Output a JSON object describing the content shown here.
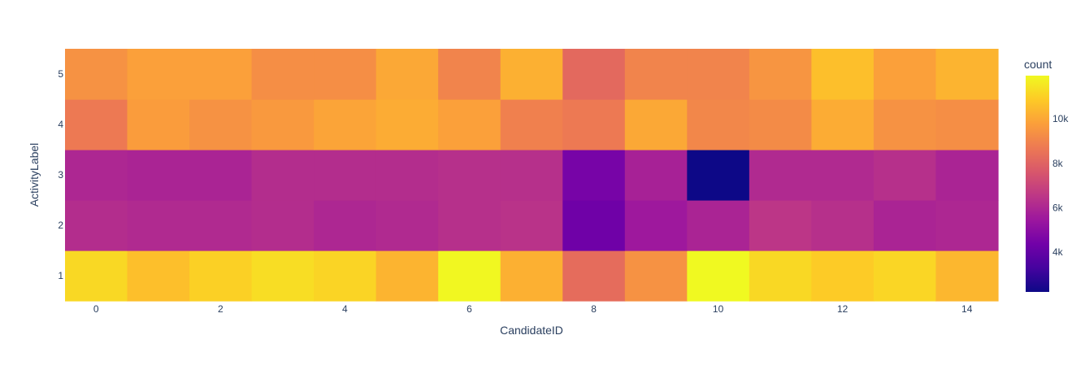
{
  "chart_data": {
    "type": "heatmap",
    "xlabel": "CandidateID",
    "ylabel": "ActivityLabel",
    "x": [
      0,
      1,
      2,
      3,
      4,
      5,
      6,
      7,
      8,
      9,
      10,
      11,
      12,
      13,
      14
    ],
    "y": [
      1,
      2,
      3,
      4,
      5
    ],
    "x_tick_labels": [
      "0",
      "2",
      "4",
      "6",
      "8",
      "10",
      "12",
      "14"
    ],
    "y_tick_labels": [
      "1",
      "2",
      "3",
      "4",
      "5"
    ],
    "z": [
      [
        11200,
        10600,
        11000,
        11300,
        11100,
        10300,
        11900,
        10200,
        8300,
        9400,
        11950,
        11200,
        10900,
        11150,
        10400
      ],
      [
        6200,
        6100,
        6100,
        6200,
        6000,
        6100,
        6300,
        6400,
        4300,
        5500,
        5900,
        6500,
        6300,
        5900,
        6000
      ],
      [
        6000,
        5900,
        5900,
        6200,
        6200,
        6200,
        6300,
        6300,
        4500,
        5800,
        2200,
        6100,
        6100,
        6300,
        5900
      ],
      [
        8700,
        9700,
        9400,
        9600,
        9900,
        10100,
        9800,
        8900,
        8700,
        10000,
        9100,
        9200,
        10100,
        9400,
        9300
      ],
      [
        9400,
        9800,
        9800,
        9300,
        9300,
        10000,
        9000,
        10200,
        8200,
        9000,
        9000,
        9500,
        10600,
        9800,
        10300
      ]
    ],
    "colorbar": {
      "title": "count",
      "zmin": 2200,
      "zmax": 11950,
      "ticks": [
        4000,
        6000,
        8000,
        10000
      ],
      "tick_labels": [
        "4k",
        "6k",
        "8k",
        "10k"
      ]
    },
    "colorscale": [
      [
        0.0,
        "#0d0887"
      ],
      [
        0.1111,
        "#46039f"
      ],
      [
        0.2222,
        "#7201a8"
      ],
      [
        0.3333,
        "#9c179e"
      ],
      [
        0.4444,
        "#bd3786"
      ],
      [
        0.5556,
        "#d8576b"
      ],
      [
        0.6667,
        "#ed7953"
      ],
      [
        0.7778,
        "#fb9f3a"
      ],
      [
        0.8889,
        "#fdca26"
      ],
      [
        1.0,
        "#f0f921"
      ]
    ]
  }
}
